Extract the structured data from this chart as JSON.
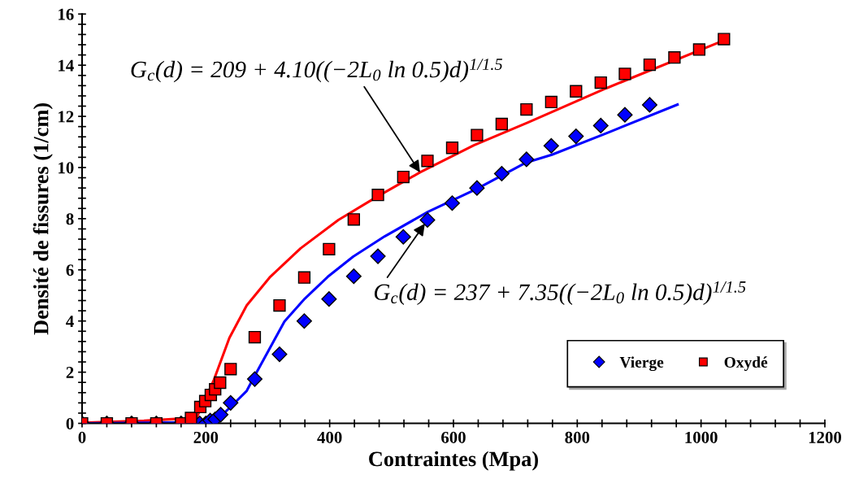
{
  "chart_data": {
    "type": "scatter",
    "xlabel": "Contraintes (Mpa)",
    "ylabel": "Densité de fissures (1/cm)",
    "xlim": [
      0,
      1200
    ],
    "ylim": [
      0,
      16
    ],
    "xticks": [
      0,
      {
        "value": 40,
        "label": null
      },
      {
        "value": 80,
        "label": null
      },
      {
        "value": 120,
        "label": null
      },
      {
        "value": 160,
        "label": null
      },
      200,
      {
        "value": 240,
        "label": null
      },
      {
        "value": 280,
        "label": null
      },
      {
        "value": 320,
        "label": null
      },
      {
        "value": 360,
        "label": null
      },
      400,
      {
        "value": 440,
        "label": null
      },
      {
        "value": 480,
        "label": null
      },
      {
        "value": 520,
        "label": null
      },
      {
        "value": 560,
        "label": null
      },
      600,
      {
        "value": 640,
        "label": null
      },
      {
        "value": 680,
        "label": null
      },
      {
        "value": 720,
        "label": null
      },
      {
        "value": 760,
        "label": null
      },
      800,
      {
        "value": 840,
        "label": null
      },
      {
        "value": 880,
        "label": null
      },
      {
        "value": 920,
        "label": null
      },
      {
        "value": 960,
        "label": null
      },
      1000,
      {
        "value": 1040,
        "label": null
      },
      {
        "value": 1080,
        "label": null
      },
      {
        "value": 1120,
        "label": null
      },
      {
        "value": 1160,
        "label": null
      },
      1200
    ],
    "yticks": [
      0,
      {
        "value": 0.4,
        "label": null
      },
      {
        "value": 0.8,
        "label": null
      },
      {
        "value": 1.2,
        "label": null
      },
      {
        "value": 1.6,
        "label": null
      },
      2,
      {
        "value": 2.4,
        "label": null
      },
      {
        "value": 2.8,
        "label": null
      },
      {
        "value": 3.2,
        "label": null
      },
      {
        "value": 3.6,
        "label": null
      },
      4,
      {
        "value": 4.4,
        "label": null
      },
      {
        "value": 4.8,
        "label": null
      },
      {
        "value": 5.2,
        "label": null
      },
      {
        "value": 5.6,
        "label": null
      },
      6,
      {
        "value": 6.4,
        "label": null
      },
      {
        "value": 6.8,
        "label": null
      },
      {
        "value": 7.2,
        "label": null
      },
      {
        "value": 7.6,
        "label": null
      },
      8,
      {
        "value": 8.4,
        "label": null
      },
      {
        "value": 8.8,
        "label": null
      },
      {
        "value": 9.2,
        "label": null
      },
      {
        "value": 9.6,
        "label": null
      },
      10,
      {
        "value": 10.4,
        "label": null
      },
      {
        "value": 10.8,
        "label": null
      },
      {
        "value": 11.2,
        "label": null
      },
      {
        "value": 11.6,
        "label": null
      },
      12,
      {
        "value": 12.4,
        "label": null
      },
      {
        "value": 12.8,
        "label": null
      },
      {
        "value": 13.2,
        "label": null
      },
      {
        "value": 13.6,
        "label": null
      },
      14,
      {
        "value": 14.4,
        "label": null
      },
      {
        "value": 14.8,
        "label": null
      },
      {
        "value": 15.2,
        "label": null
      },
      {
        "value": 15.6,
        "label": null
      },
      16
    ],
    "grid": false,
    "legend": "bottom right",
    "series": [
      {
        "type": "line",
        "color": "#ff0000",
        "marker": "none",
        "line_style": "solid",
        "x": [
          0,
          100,
          185,
          213,
          238,
          266,
          303,
          353,
          414,
          476,
          546,
          633,
          721,
          847,
          1040
        ],
        "values": [
          0.02,
          0.1,
          0.22,
          1.7,
          3.34,
          4.61,
          5.7,
          6.84,
          7.95,
          8.85,
          9.81,
          10.87,
          11.77,
          13.1,
          15.0
        ]
      },
      {
        "type": "line",
        "color": "#0000ff",
        "marker": "none",
        "line_style": "solid",
        "x": [
          0,
          100,
          200,
          224,
          244,
          266,
          279,
          327,
          360,
          397,
          438,
          489,
          559,
          638,
          716,
          759,
          847,
          962
        ],
        "values": [
          0,
          0.02,
          0.05,
          0.27,
          0.74,
          1.27,
          1.86,
          3.98,
          4.88,
          5.73,
          6.52,
          7.31,
          8.27,
          9.17,
          10.18,
          10.5,
          11.34,
          12.46
        ]
      },
      {
        "name": "Vierge",
        "color": "#0000ff",
        "marker": "diamond",
        "x": [
          0,
          40,
          80,
          120,
          160,
          175,
          190,
          200,
          207,
          215,
          224,
          240,
          279,
          319,
          359,
          399,
          439,
          478,
          519,
          558,
          598,
          638,
          678,
          718,
          758,
          798,
          838,
          877,
          917
        ],
        "values": [
          0,
          0,
          0,
          0,
          0,
          0,
          0,
          0,
          0.11,
          0.16,
          0.34,
          0.8,
          1.73,
          2.7,
          4.0,
          4.86,
          5.75,
          6.53,
          7.29,
          7.95,
          8.61,
          9.2,
          9.76,
          10.32,
          10.85,
          11.22,
          11.64,
          12.06,
          12.45
        ]
      },
      {
        "name": "Oxydé",
        "color": "#ff0000",
        "marker": "square",
        "x": [
          0,
          40,
          80,
          120,
          160,
          176,
          191,
          199,
          208,
          215,
          223,
          240,
          279,
          319,
          359,
          399,
          439,
          478,
          519,
          558,
          598,
          638,
          678,
          718,
          758,
          798,
          838,
          877,
          917,
          957,
          997,
          1037
        ],
        "values": [
          0,
          0,
          0,
          0,
          0,
          0.21,
          0.64,
          0.87,
          1.11,
          1.33,
          1.59,
          2.12,
          3.37,
          4.61,
          5.7,
          6.81,
          7.97,
          8.93,
          9.63,
          10.26,
          10.77,
          11.27,
          11.7,
          12.27,
          12.56,
          12.98,
          13.32,
          13.66,
          14.02,
          14.3,
          14.61,
          15.02
        ]
      }
    ],
    "annotations": [
      {
        "text": "G$_{c}$(d) = 209 + 4.10((−2L$_{0}$ ln 0.5)d)$^{1/1.5}$",
        "x": 546,
        "y": 9.81
      },
      {
        "text": "G$_{c}$(d) = 237 + 7.35((−2L$_{0}$ ln 0.5)d)$^{1/1.5}$",
        "x": 558,
        "y": 7.95
      }
    ]
  }
}
